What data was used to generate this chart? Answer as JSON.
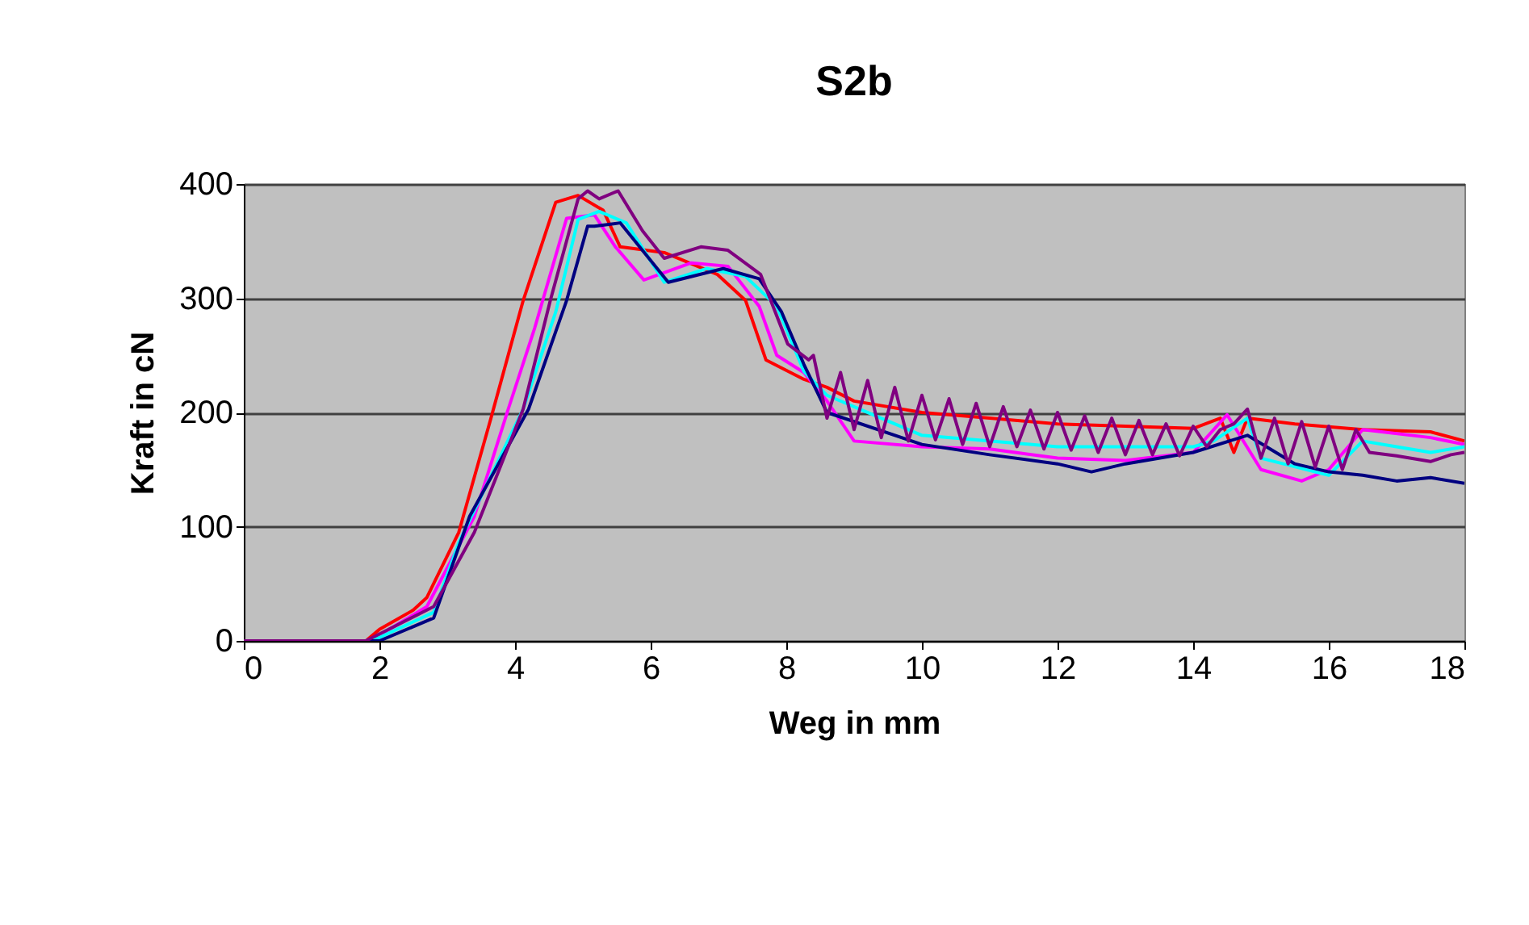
{
  "chart_data": {
    "type": "line",
    "title": "S2b",
    "xlabel": "Weg in mm",
    "ylabel": "Kraft in cN",
    "xlim": [
      0,
      18
    ],
    "xticks": [
      0,
      2,
      4,
      6,
      8,
      10,
      12,
      14,
      16,
      18
    ],
    "ylim": [
      0,
      400
    ],
    "yticks": [
      0,
      100,
      200,
      300,
      400
    ],
    "grid": "y",
    "legend": false,
    "marker": "none",
    "line_style": "solid",
    "series": [
      {
        "color": "#ff0000",
        "x": [
          0,
          1.8,
          2.0,
          2.5,
          2.7,
          3.17,
          3.64,
          4.12,
          4.6,
          4.93,
          5.3,
          5.55,
          6.2,
          6.98,
          7.4,
          7.7,
          8.26,
          8.6,
          9.0,
          10,
          11,
          12,
          13,
          14,
          14.4,
          14.6,
          14.8,
          15.5,
          16.5,
          17.5,
          18
        ],
        "values": [
          0,
          0,
          10,
          27,
          38,
          95,
          194,
          298,
          384,
          390,
          377,
          345,
          340,
          321,
          298,
          246,
          229,
          222,
          210,
          200,
          195,
          190,
          188,
          186,
          195,
          165,
          195,
          190,
          185,
          183,
          175
        ]
      },
      {
        "color": "#ff00ff",
        "x": [
          0,
          1.8,
          2.0,
          2.7,
          3.4,
          3.9,
          4.29,
          4.76,
          5.17,
          5.48,
          5.9,
          6.6,
          7.14,
          7.6,
          7.86,
          8.26,
          8.6,
          9,
          10,
          11,
          12,
          13,
          14,
          14.5,
          15,
          15.6,
          16,
          16.5,
          17.5,
          18
        ],
        "values": [
          0,
          0,
          5,
          30,
          109,
          203,
          274,
          370,
          373,
          345,
          316,
          331,
          328,
          293,
          250,
          235,
          210,
          175,
          170,
          168,
          160,
          158,
          165,
          198,
          150,
          140,
          150,
          185,
          178,
          172
        ]
      },
      {
        "color": "#00ffff",
        "x": [
          0,
          1.8,
          2.0,
          2.8,
          3.17,
          4.12,
          4.6,
          4.93,
          5.24,
          5.64,
          6.2,
          6.83,
          7.4,
          7.86,
          8.26,
          8.6,
          10,
          12,
          14,
          14.3,
          14.8,
          15,
          16,
          16.5,
          17,
          17.5,
          18
        ],
        "values": [
          0,
          0,
          3,
          25,
          86,
          203,
          288,
          369,
          376,
          366,
          314,
          326,
          319,
          293,
          236,
          215,
          180,
          170,
          170,
          175,
          195,
          160,
          145,
          175,
          170,
          165,
          170
        ]
      },
      {
        "color": "#000080",
        "x": [
          0,
          1.8,
          2.0,
          2.8,
          3.33,
          4.2,
          4.76,
          5.07,
          5.17,
          5.55,
          6.26,
          7.07,
          7.6,
          7.93,
          8.26,
          8.6,
          10,
          11,
          12,
          12.5,
          13,
          14,
          14.8,
          15.5,
          16,
          16.5,
          17,
          17.5,
          18
        ],
        "values": [
          0,
          0,
          0,
          20,
          109,
          203,
          298,
          363,
          363,
          366,
          314,
          326,
          317,
          288,
          242,
          200,
          172,
          163,
          155,
          148,
          155,
          165,
          180,
          155,
          148,
          145,
          140,
          143,
          138
        ]
      },
      {
        "color": "#800080",
        "x": [
          0,
          1.8,
          1.9,
          2.8,
          3.4,
          4.12,
          4.52,
          4.93,
          5.07,
          5.24,
          5.52,
          5.88,
          6.2,
          6.74,
          7.14,
          7.62,
          8.02,
          8.33,
          8.4,
          8.6,
          8.8,
          9.0,
          9.2,
          9.4,
          9.6,
          9.8,
          10.0,
          10.2,
          10.4,
          10.6,
          10.8,
          11.0,
          11.2,
          11.4,
          11.6,
          11.8,
          12.0,
          12.2,
          12.4,
          12.6,
          12.8,
          13.0,
          13.2,
          13.4,
          13.6,
          13.8,
          14.0,
          14.2,
          14.4,
          14.6,
          14.8,
          15.0,
          15.2,
          15.4,
          15.6,
          15.8,
          16.0,
          16.2,
          16.4,
          16.6,
          17.0,
          17.5,
          17.8,
          18.0
        ],
        "values": [
          0,
          0,
          3,
          30,
          95,
          203,
          298,
          387,
          394,
          387,
          394,
          359,
          335,
          345,
          342,
          321,
          260,
          246,
          250,
          195,
          235,
          185,
          228,
          178,
          222,
          175,
          215,
          176,
          212,
          172,
          208,
          170,
          205,
          170,
          202,
          168,
          200,
          167,
          197,
          165,
          195,
          163,
          193,
          163,
          190,
          162,
          188,
          170,
          185,
          190,
          203,
          160,
          195,
          155,
          192,
          152,
          188,
          150,
          185,
          165,
          162,
          157,
          163,
          165
        ]
      }
    ]
  }
}
